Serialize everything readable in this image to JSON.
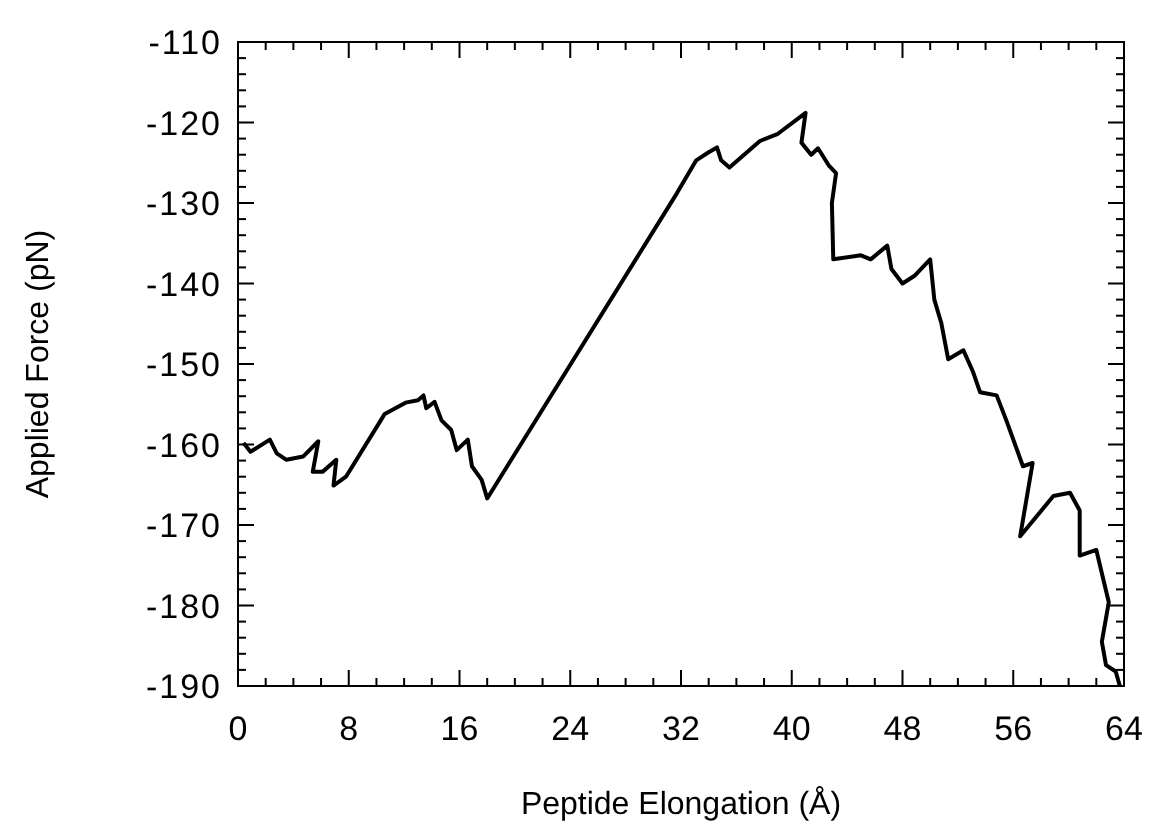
{
  "chart_data": {
    "type": "line",
    "xlabel": "Peptide Elongation (Å)",
    "ylabel": "Applied Force (pN)",
    "xlim": [
      0,
      64
    ],
    "ylim": [
      -190,
      -110
    ],
    "xticks": [
      0,
      {
        "value": 2,
        "label": null
      },
      {
        "value": 4,
        "label": null
      },
      {
        "value": 6,
        "label": null
      },
      8,
      {
        "value": 10,
        "label": null
      },
      {
        "value": 12,
        "label": null
      },
      {
        "value": 14,
        "label": null
      },
      16,
      {
        "value": 18,
        "label": null
      },
      {
        "value": 20,
        "label": null
      },
      {
        "value": 22,
        "label": null
      },
      24,
      {
        "value": 26,
        "label": null
      },
      {
        "value": 28,
        "label": null
      },
      {
        "value": 30,
        "label": null
      },
      32,
      {
        "value": 34,
        "label": null
      },
      {
        "value": 36,
        "label": null
      },
      {
        "value": 38,
        "label": null
      },
      40,
      {
        "value": 42,
        "label": null
      },
      {
        "value": 44,
        "label": null
      },
      {
        "value": 46,
        "label": null
      },
      48,
      {
        "value": 50,
        "label": null
      },
      {
        "value": 52,
        "label": null
      },
      {
        "value": 54,
        "label": null
      },
      56,
      {
        "value": 58,
        "label": null
      },
      {
        "value": 60,
        "label": null
      },
      {
        "value": 62,
        "label": null
      },
      64
    ],
    "yticks": [
      -190,
      {
        "value": -188,
        "label": null
      },
      {
        "value": -186,
        "label": null
      },
      {
        "value": -184,
        "label": null
      },
      {
        "value": -182,
        "label": null
      },
      -180,
      {
        "value": -178,
        "label": null
      },
      {
        "value": -176,
        "label": null
      },
      {
        "value": -174,
        "label": null
      },
      {
        "value": -172,
        "label": null
      },
      -170,
      {
        "value": -168,
        "label": null
      },
      {
        "value": -166,
        "label": null
      },
      {
        "value": -164,
        "label": null
      },
      {
        "value": -162,
        "label": null
      },
      -160,
      {
        "value": -158,
        "label": null
      },
      {
        "value": -156,
        "label": null
      },
      {
        "value": -154,
        "label": null
      },
      {
        "value": -152,
        "label": null
      },
      -150,
      {
        "value": -148,
        "label": null
      },
      {
        "value": -146,
        "label": null
      },
      {
        "value": -144,
        "label": null
      },
      {
        "value": -142,
        "label": null
      },
      -140,
      {
        "value": -138,
        "label": null
      },
      {
        "value": -136,
        "label": null
      },
      {
        "value": -134,
        "label": null
      },
      {
        "value": -132,
        "label": null
      },
      -130,
      {
        "value": -128,
        "label": null
      },
      {
        "value": -126,
        "label": null
      },
      {
        "value": -124,
        "label": null
      },
      {
        "value": -122,
        "label": null
      },
      -120,
      {
        "value": -118,
        "label": null
      },
      {
        "value": -116,
        "label": null
      },
      {
        "value": -114,
        "label": null
      },
      {
        "value": -112,
        "label": null
      },
      -110
    ],
    "grid": false,
    "marker": "none",
    "line_style": "solid",
    "series": [
      {
        "color": "#000000",
        "x": [
          0.4,
          0.9,
          2.3,
          2.8,
          3.5,
          4.7,
          5.8,
          5.4,
          6.1,
          7.1,
          6.9,
          7.8,
          10.6,
          12.1,
          13.0,
          13.4,
          13.6,
          14.2,
          14.7,
          15.4,
          15.8,
          16.6,
          16.9,
          17.6,
          18.0,
          31.7,
          33.1,
          34.0,
          34.6,
          34.9,
          35.5,
          37.7,
          39.0,
          41.0,
          40.7,
          41.4,
          41.9,
          42.7,
          43.2,
          42.9,
          43.0,
          45.0,
          45.7,
          46.9,
          47.2,
          48.0,
          48.9,
          50.0,
          50.3,
          50.8,
          51.3,
          52.4,
          53.1,
          53.6,
          54.8,
          55.5,
          56.7,
          57.4,
          56.5,
          58.9,
          60.1,
          60.8,
          60.8,
          62.0,
          62.9,
          62.4,
          62.7,
          63.4,
          63.7
        ],
        "values": [
          -159.8,
          -160.9,
          -159.4,
          -161.1,
          -161.9,
          -161.5,
          -159.6,
          -163.4,
          -163.4,
          -161.9,
          -165.1,
          -164.0,
          -156.2,
          -154.8,
          -154.5,
          -153.9,
          -155.5,
          -154.7,
          -157.0,
          -158.2,
          -160.7,
          -159.4,
          -162.7,
          -164.4,
          -166.7,
          -128.8,
          -124.7,
          -123.7,
          -123.1,
          -124.7,
          -125.6,
          -122.3,
          -121.4,
          -118.8,
          -122.5,
          -124.0,
          -123.2,
          -125.4,
          -126.3,
          -130.0,
          -137.0,
          -136.5,
          -137.0,
          -135.3,
          -138.2,
          -140.0,
          -139.0,
          -137.0,
          -142.0,
          -144.9,
          -149.4,
          -148.3,
          -151.0,
          -153.5,
          -153.9,
          -157.0,
          -162.7,
          -162.3,
          -171.4,
          -166.4,
          -166.0,
          -168.2,
          -173.8,
          -173.1,
          -179.6,
          -184.5,
          -187.4,
          -188.2,
          -190.0
        ]
      }
    ]
  }
}
